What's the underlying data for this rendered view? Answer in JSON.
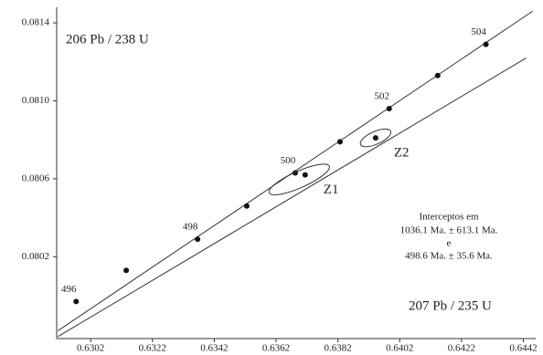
{
  "chart_data": {
    "type": "scatter",
    "title": "206 Pb / 238 U",
    "x_label": "207 Pb / 235 U",
    "xlim": [
      0.6291,
      0.6446
    ],
    "ylim": [
      0.07978,
      0.08148
    ],
    "xticks": [
      0.6302,
      0.6322,
      0.6342,
      0.6362,
      0.6382,
      0.6402,
      0.6422,
      0.6442
    ],
    "yticks": [
      0.0802,
      0.0806,
      {
        "value": 0.081,
        "label": "0.0810"
      },
      0.0814
    ],
    "grid": false,
    "series": [
      {
        "color": "#111111",
        "x": [
          0.62973,
          0.63135,
          0.63366,
          0.63525,
          0.63682,
          0.63827,
          0.63986,
          0.64143,
          0.64299
        ],
        "y": [
          0.07997,
          0.08013,
          0.08029,
          0.08046,
          0.08063,
          0.08079,
          0.08096,
          0.08113,
          0.08129
        ],
        "labels": [
          496,
          null,
          498,
          null,
          500,
          null,
          502,
          null,
          504
        ]
      },
      {
        "color": "#111111",
        "x": [
          0.63714,
          0.63942
        ],
        "y": [
          0.08062,
          0.08081
        ],
        "labels": [
          "Z1",
          "Z2"
        ]
      }
    ],
    "lines": [
      {
        "x": [
          0.62914,
          0.6445
        ],
        "y": [
          0.07982,
          0.08146
        ]
      },
      {
        "x": [
          0.62914,
          0.64429
        ],
        "y": [
          0.07979,
          0.08122
        ]
      }
    ],
    "annotation": [
      "Interceptos em",
      "1036.1 Ma. ± 613.1 Ma.",
      "e",
      "498.6 Ma. ± 35.6 Ma."
    ]
  }
}
